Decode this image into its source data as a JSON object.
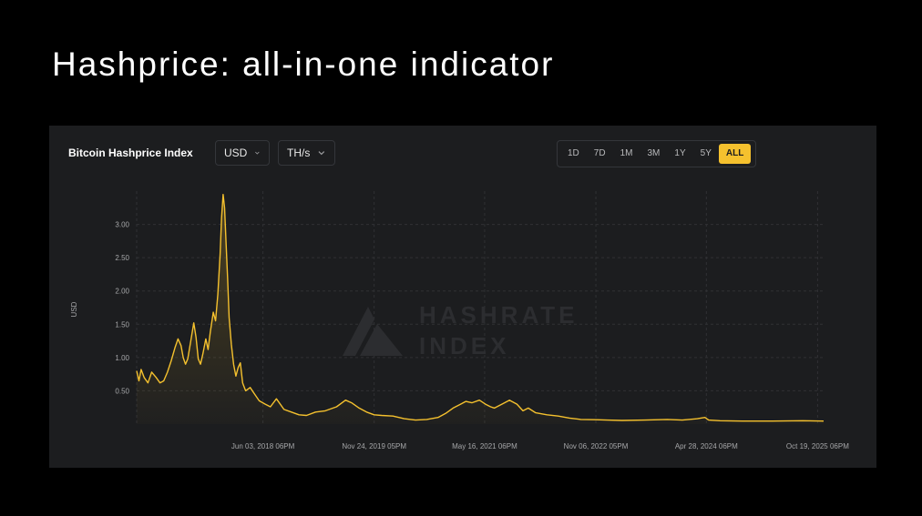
{
  "slide": {
    "title": "Hashprice: all-in-one indicator"
  },
  "widget": {
    "title": "Bitcoin Hashprice Index",
    "currency": {
      "selected": "USD",
      "icon": "chevron-down-icon"
    },
    "unit": {
      "selected": "TH/s",
      "icon": "chevron-down-icon"
    },
    "ranges": [
      "1D",
      "7D",
      "1M",
      "3M",
      "1Y",
      "5Y",
      "ALL"
    ],
    "active_range": "ALL",
    "watermark": {
      "line1": "HASHRATE",
      "line2": "INDEX",
      "icon": "hashrate-index-logo-icon"
    }
  },
  "colors": {
    "accent": "#f5c12e",
    "line": "#f5c12e",
    "panel": "#1c1d1f",
    "background": "#000000"
  },
  "chart_data": {
    "type": "line",
    "title": "Bitcoin Hashprice Index",
    "ylabel": "USD",
    "xlabel": "",
    "ylim": [
      0,
      3.5
    ],
    "xlim": [
      2016.74,
      2025.88
    ],
    "yticks": [
      "0.50",
      "1.00",
      "1.50",
      "2.00",
      "2.50",
      "3.00"
    ],
    "ytick_values": [
      0.5,
      1.0,
      1.5,
      2.0,
      2.5,
      3.0
    ],
    "xticks": [
      "Jun 03, 2018 06PM",
      "Nov 24, 2019 05PM",
      "May 16, 2021 06PM",
      "Nov 06, 2022 05PM",
      "Apr 28, 2024 06PM",
      "Oct 19, 2025 06PM"
    ],
    "xtick_values": [
      2018.42,
      2019.9,
      2021.37,
      2022.85,
      2024.32,
      2025.8
    ],
    "grid": true,
    "legend": "none",
    "series": [
      {
        "x": [
          2016.74,
          2016.77,
          2016.8,
          2016.84,
          2016.89,
          2016.94,
          2017.0,
          2017.05,
          2017.1,
          2017.15,
          2017.2,
          2017.25,
          2017.29,
          2017.33,
          2017.36,
          2017.39,
          2017.42,
          2017.46,
          2017.5,
          2017.53,
          2017.56,
          2017.59,
          2017.62,
          2017.66,
          2017.69,
          2017.72,
          2017.76,
          2017.79,
          2017.82,
          2017.85,
          2017.87,
          2017.89,
          2017.91,
          2017.93,
          2017.95,
          2017.97,
          2018.0,
          2018.03,
          2018.06,
          2018.09,
          2018.12,
          2018.15,
          2018.19,
          2018.25,
          2018.31,
          2018.37,
          2018.45,
          2018.52,
          2018.6,
          2018.7,
          2018.8,
          2018.9,
          2019.0,
          2019.12,
          2019.25,
          2019.4,
          2019.52,
          2019.6,
          2019.7,
          2019.8,
          2019.9,
          2020.0,
          2020.15,
          2020.3,
          2020.45,
          2020.6,
          2020.75,
          2020.85,
          2020.95,
          2021.05,
          2021.12,
          2021.2,
          2021.3,
          2021.38,
          2021.45,
          2021.5,
          2021.6,
          2021.7,
          2021.8,
          2021.88,
          2021.95,
          2022.05,
          2022.2,
          2022.35,
          2022.5,
          2022.65,
          2022.85,
          2023.0,
          2023.2,
          2023.5,
          2023.8,
          2024.0,
          2024.2,
          2024.3,
          2024.35,
          2024.5,
          2024.8,
          2025.2,
          2025.6,
          2025.88
        ],
        "y": [
          0.8,
          0.65,
          0.82,
          0.7,
          0.62,
          0.78,
          0.7,
          0.62,
          0.65,
          0.78,
          0.95,
          1.15,
          1.28,
          1.18,
          1.0,
          0.9,
          0.98,
          1.25,
          1.52,
          1.3,
          0.98,
          0.9,
          1.05,
          1.28,
          1.12,
          1.38,
          1.68,
          1.55,
          1.95,
          2.55,
          3.1,
          3.45,
          3.25,
          2.7,
          2.2,
          1.6,
          1.2,
          0.9,
          0.72,
          0.85,
          0.92,
          0.62,
          0.5,
          0.55,
          0.45,
          0.35,
          0.3,
          0.26,
          0.38,
          0.22,
          0.18,
          0.14,
          0.13,
          0.18,
          0.2,
          0.26,
          0.36,
          0.32,
          0.24,
          0.18,
          0.14,
          0.13,
          0.12,
          0.08,
          0.06,
          0.07,
          0.1,
          0.16,
          0.24,
          0.3,
          0.34,
          0.32,
          0.36,
          0.3,
          0.26,
          0.24,
          0.3,
          0.36,
          0.3,
          0.2,
          0.24,
          0.17,
          0.14,
          0.12,
          0.09,
          0.07,
          0.065,
          0.06,
          0.055,
          0.06,
          0.07,
          0.06,
          0.08,
          0.1,
          0.06,
          0.05,
          0.045,
          0.045,
          0.05,
          0.045
        ]
      }
    ]
  }
}
